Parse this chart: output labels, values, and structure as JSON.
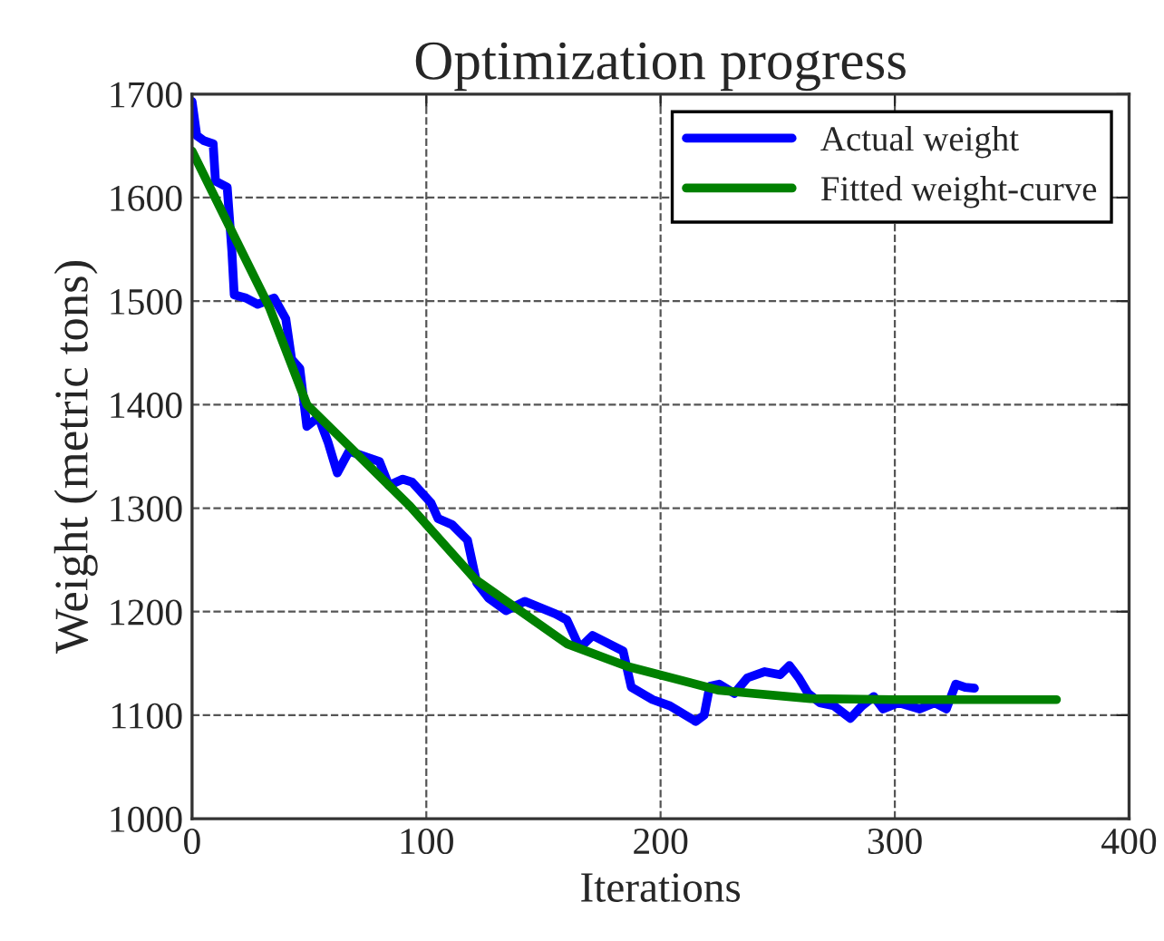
{
  "chart_data": {
    "type": "line",
    "title": "Optimization progress",
    "xlabel": "Iterations",
    "ylabel": "Weight (metric tons)",
    "xlim": [
      0,
      400
    ],
    "xticks": [
      0,
      100,
      200,
      300,
      400
    ],
    "ylim": [
      1000,
      1700
    ],
    "yticks": [
      1000,
      1100,
      1200,
      1300,
      1400,
      1500,
      1600,
      1700
    ],
    "grid": true,
    "legend": "top right",
    "series": [
      {
        "name": "Actual weight",
        "color": "#0000ff",
        "x": [
          0,
          2,
          5,
          9,
          10,
          15,
          17,
          18,
          23,
          28,
          35,
          40,
          42.5,
          46,
          49,
          54,
          58,
          62,
          67,
          80,
          84,
          90,
          94,
          102,
          105,
          111,
          117.6,
          121.5,
          126.6,
          134,
          142,
          155,
          160,
          165.5,
          171,
          184,
          187.5,
          196.6,
          204,
          215,
          218.6,
          221,
          225,
          231.5,
          237,
          244.5,
          251,
          255,
          259,
          263,
          268,
          274,
          281,
          286,
          291,
          295,
          301.5,
          310.6,
          317,
          322,
          326,
          330,
          334
        ],
        "values": [
          1693,
          1660,
          1655,
          1652,
          1616,
          1610,
          1548,
          1506,
          1503,
          1497,
          1503,
          1483,
          1444,
          1435,
          1379,
          1388,
          1364,
          1334,
          1355,
          1345,
          1322,
          1328,
          1325,
          1305,
          1290,
          1284,
          1269,
          1228,
          1213,
          1201,
          1210,
          1198,
          1192,
          1165,
          1177,
          1162,
          1127,
          1115,
          1109,
          1094,
          1100,
          1128,
          1130,
          1121,
          1136,
          1142,
          1139,
          1148,
          1136,
          1121,
          1112,
          1109,
          1097,
          1109,
          1118,
          1106,
          1112,
          1106,
          1112,
          1106,
          1130,
          1127,
          1126
        ]
      },
      {
        "name": "Fitted weight-curve",
        "color": "#008000",
        "x": [
          0,
          33,
          49,
          93,
          121,
          160,
          186,
          225,
          264,
          300,
          369
        ],
        "values": [
          1645,
          1494,
          1400,
          1302,
          1231,
          1169,
          1147,
          1124,
          1116,
          1115,
          1115
        ]
      }
    ]
  }
}
